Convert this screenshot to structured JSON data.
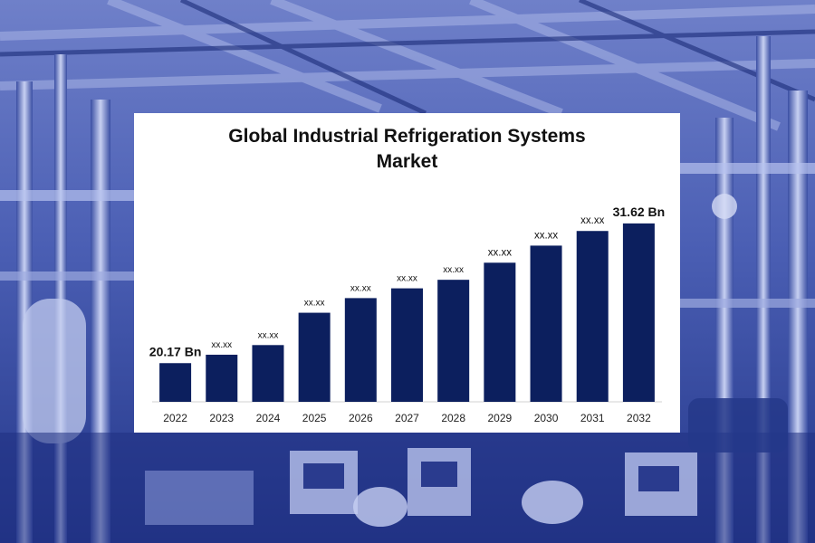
{
  "background": {
    "tint": "#2e3f9a",
    "highlight": "#b9c3ec",
    "shadow": "#0f1d5c"
  },
  "chart_data": {
    "type": "bar",
    "title": "Global Industrial Refrigeration Systems Market",
    "categories": [
      "2022",
      "2023",
      "2024",
      "2025",
      "2026",
      "2027",
      "2028",
      "2029",
      "2030",
      "2031",
      "2032"
    ],
    "values": [
      20.17,
      20.86,
      21.65,
      24.3,
      25.5,
      26.3,
      27.0,
      28.4,
      29.8,
      31.0,
      31.62
    ],
    "data_labels": [
      "20.17 Bn",
      "xx.xx",
      "xx.xx",
      "xx.xx",
      "xx.xx",
      "xx.xx",
      "xx.xx",
      "xx.xx",
      "xx.xx",
      "xx.xx",
      "31.62 Bn"
    ],
    "ylim": [
      17.0,
      32.5
    ],
    "bar_color": "#0c1f5e",
    "grid": false,
    "legend": "none"
  }
}
